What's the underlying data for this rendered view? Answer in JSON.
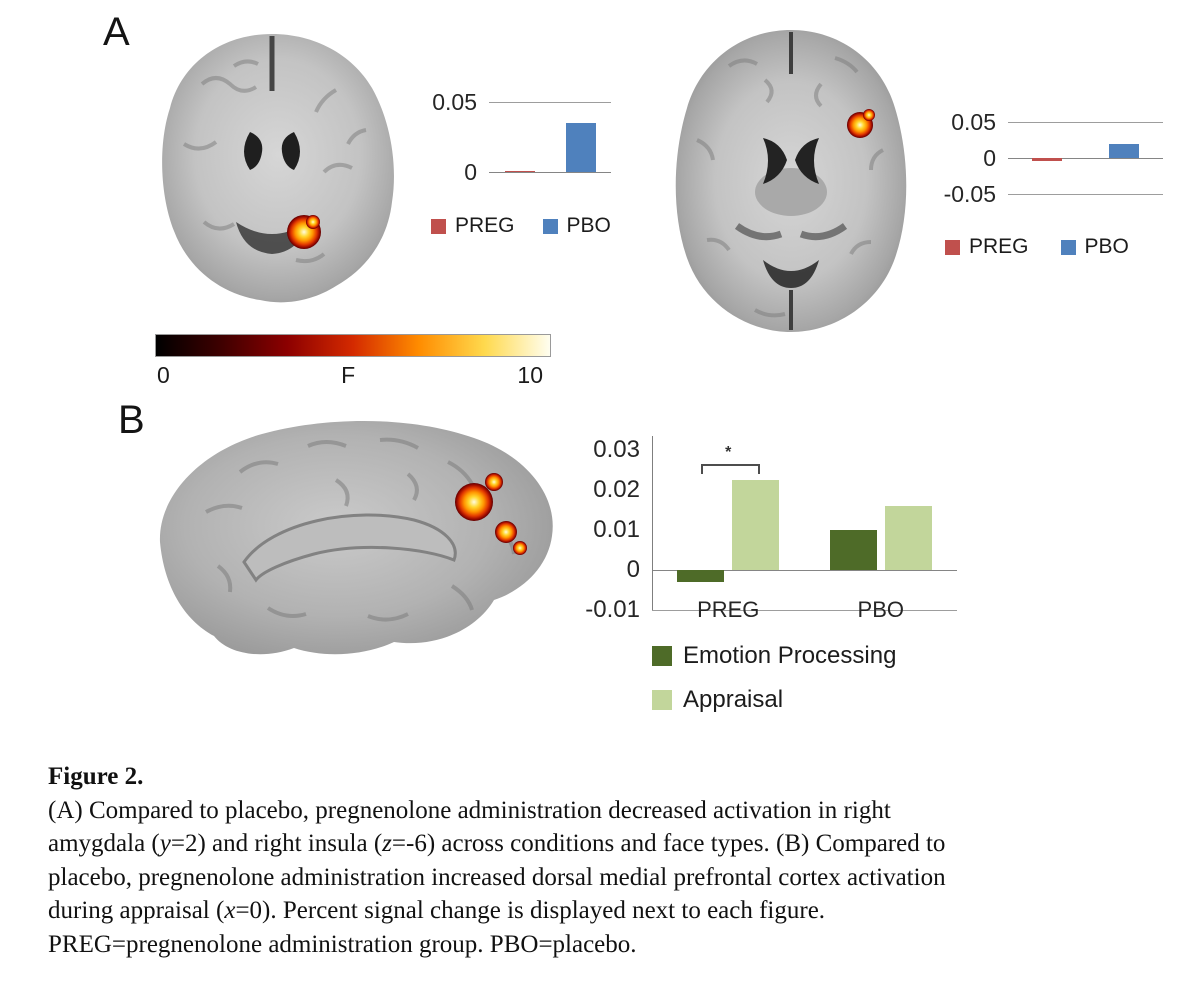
{
  "panels": {
    "a": {
      "label": "A"
    },
    "b": {
      "label": "B"
    }
  },
  "colorbar": {
    "min_label": "0",
    "mid_label": "F",
    "max_label": "10",
    "gradient": [
      "#000000",
      "#3f0000",
      "#8c0000",
      "#d42a00",
      "#ff8c00",
      "#ffd94d",
      "#fffef0"
    ]
  },
  "caption": {
    "title": "Figure 2.",
    "lines": [
      [
        {
          "t": "(A) Compared to placebo, pregnenolone administration decreased activation in right"
        }
      ],
      [
        {
          "t": "amygdala ("
        },
        {
          "t": "y",
          "i": true
        },
        {
          "t": "=2) and right insula ("
        },
        {
          "t": "z",
          "i": true
        },
        {
          "t": "=-6) across conditions and face types. (B) Compared to"
        }
      ],
      [
        {
          "t": "placebo, pregnenolone administration increased dorsal medial prefrontal cortex activation"
        }
      ],
      [
        {
          "t": "during appraisal ("
        },
        {
          "t": "x",
          "i": true
        },
        {
          "t": "=0). Percent signal change is displayed next to each figure."
        }
      ],
      [
        {
          "t": "PREG=pregnenolone administration group. PBO=placebo."
        }
      ]
    ]
  },
  "chart_data": [
    {
      "id": "right-amygdala-percent-signal-change",
      "type": "bar",
      "bars": [
        {
          "label": "PREG",
          "value": 0.001,
          "color": "#c0504d"
        },
        {
          "label": "PBO",
          "value": 0.035,
          "color": "#4f81bd"
        }
      ],
      "yticks": [
        0.05,
        0
      ],
      "ytick_labels": [
        "0.05",
        "0"
      ],
      "ylim": [
        0,
        0.05
      ],
      "gridlines": [
        0.05,
        0
      ],
      "legend": [
        {
          "label": "PREG",
          "color": "#c0504d"
        },
        {
          "label": "PBO",
          "color": "#4f81bd"
        }
      ]
    },
    {
      "id": "right-insula-percent-signal-change",
      "type": "bar",
      "bars": [
        {
          "label": "PREG",
          "value": -0.004,
          "color": "#c0504d"
        },
        {
          "label": "PBO",
          "value": 0.02,
          "color": "#4f81bd"
        }
      ],
      "yticks": [
        0.05,
        0,
        -0.05
      ],
      "ytick_labels": [
        "0.05",
        "0",
        "-0.05"
      ],
      "ylim": [
        -0.05,
        0.05
      ],
      "gridlines": [
        0.05,
        0,
        -0.05
      ],
      "legend": [
        {
          "label": "PREG",
          "color": "#c0504d"
        },
        {
          "label": "PBO",
          "color": "#4f81bd"
        }
      ]
    },
    {
      "id": "dmpfc-percent-signal-change",
      "type": "bar",
      "categories": [
        "PREG",
        "PBO"
      ],
      "series": [
        {
          "name": "Emotion Processing",
          "color": "#4e6b28",
          "values": [
            -0.003,
            0.01
          ]
        },
        {
          "name": "Appraisal",
          "color": "#c2d69b",
          "values": [
            0.0225,
            0.016
          ]
        }
      ],
      "yticks": [
        0.03,
        0.02,
        0.01,
        0,
        -0.01
      ],
      "ytick_labels": [
        "0.03",
        "0.02",
        "0.01",
        "0",
        "-0.01"
      ],
      "ylim": [
        -0.01,
        0.03
      ],
      "gridlines": [
        0,
        -0.01
      ],
      "yaxis_line": true,
      "show_category_labels": true,
      "annotation": {
        "text": "*",
        "category_index": 0,
        "y_value": 0.0265
      },
      "legend": [
        {
          "label": "Emotion Processing",
          "color": "#4e6b28"
        },
        {
          "label": "Appraisal",
          "color": "#c2d69b"
        }
      ]
    }
  ]
}
